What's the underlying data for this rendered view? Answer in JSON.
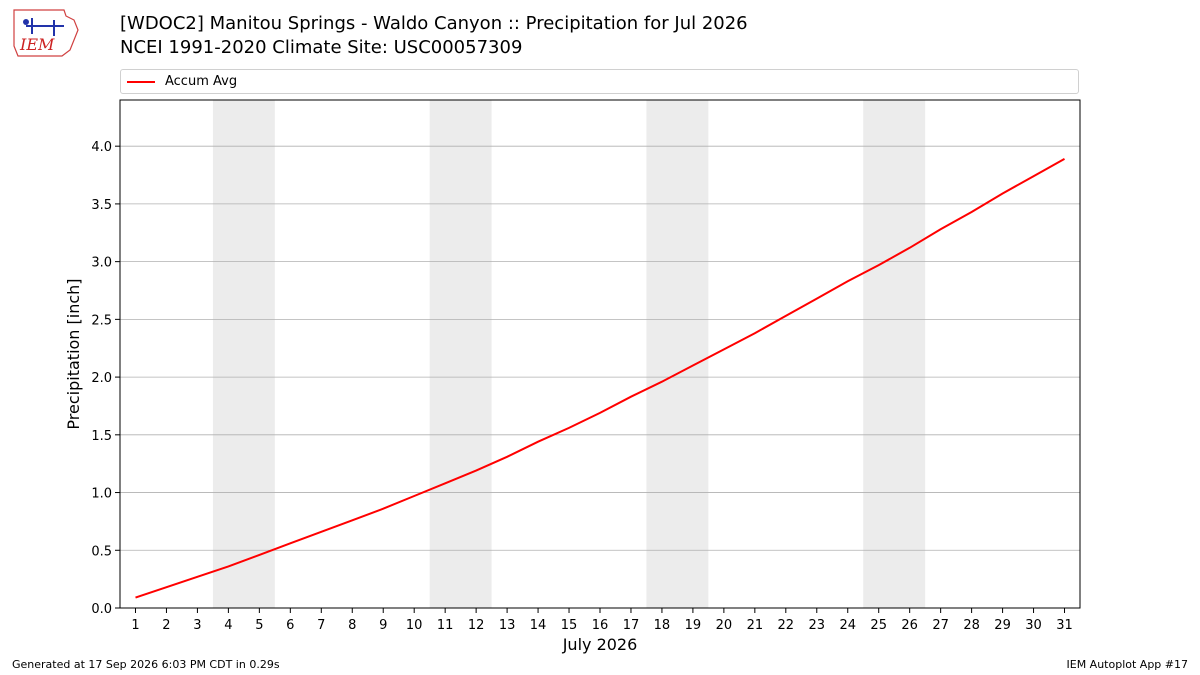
{
  "header": {
    "title_line1": "[WDOC2] Manitou Springs - Waldo Canyon :: Precipitation for Jul 2026",
    "title_line2": "NCEI 1991-2020 Climate Site: USC00057309",
    "logo_text": "IEM"
  },
  "footer": {
    "generated": "Generated at 17 Sep 2026 6:03 PM CDT in 0.29s",
    "app": "IEM Autoplot App #17"
  },
  "colors": {
    "series": "#ff0000",
    "weekend_band": "#ececec",
    "grid": "#b0b0b0"
  },
  "chart_data": {
    "type": "line",
    "xlabel": "July 2026",
    "ylabel": "Precipitation [inch]",
    "xlim": [
      0.5,
      31.5
    ],
    "ylim": [
      0.0,
      4.4
    ],
    "yticks": [
      0.0,
      0.5,
      1.0,
      1.5,
      2.0,
      2.5,
      3.0,
      3.5,
      4.0
    ],
    "ytick_labels": [
      "0.0",
      "0.5",
      "1.0",
      "1.5",
      "2.0",
      "2.5",
      "3.0",
      "3.5",
      "4.0"
    ],
    "xticks": [
      1,
      2,
      3,
      4,
      5,
      6,
      7,
      8,
      9,
      10,
      11,
      12,
      13,
      14,
      15,
      16,
      17,
      18,
      19,
      20,
      21,
      22,
      23,
      24,
      25,
      26,
      27,
      28,
      29,
      30,
      31
    ],
    "grid": "horizontal",
    "legend_position": "top",
    "shaded_ranges": [
      [
        3.5,
        5.5
      ],
      [
        10.5,
        12.5
      ],
      [
        17.5,
        19.5
      ],
      [
        24.5,
        26.5
      ]
    ],
    "series": [
      {
        "name": "Accum Avg",
        "x": [
          1,
          2,
          3,
          4,
          5,
          6,
          7,
          8,
          9,
          10,
          11,
          12,
          13,
          14,
          15,
          16,
          17,
          18,
          19,
          20,
          21,
          22,
          23,
          24,
          25,
          26,
          27,
          28,
          29,
          30,
          31
        ],
        "values": [
          0.09,
          0.18,
          0.27,
          0.36,
          0.46,
          0.56,
          0.66,
          0.76,
          0.86,
          0.97,
          1.08,
          1.19,
          1.31,
          1.44,
          1.56,
          1.69,
          1.83,
          1.96,
          2.1,
          2.24,
          2.38,
          2.53,
          2.68,
          2.83,
          2.97,
          3.12,
          3.28,
          3.43,
          3.59,
          3.74,
          3.89
        ]
      }
    ]
  }
}
